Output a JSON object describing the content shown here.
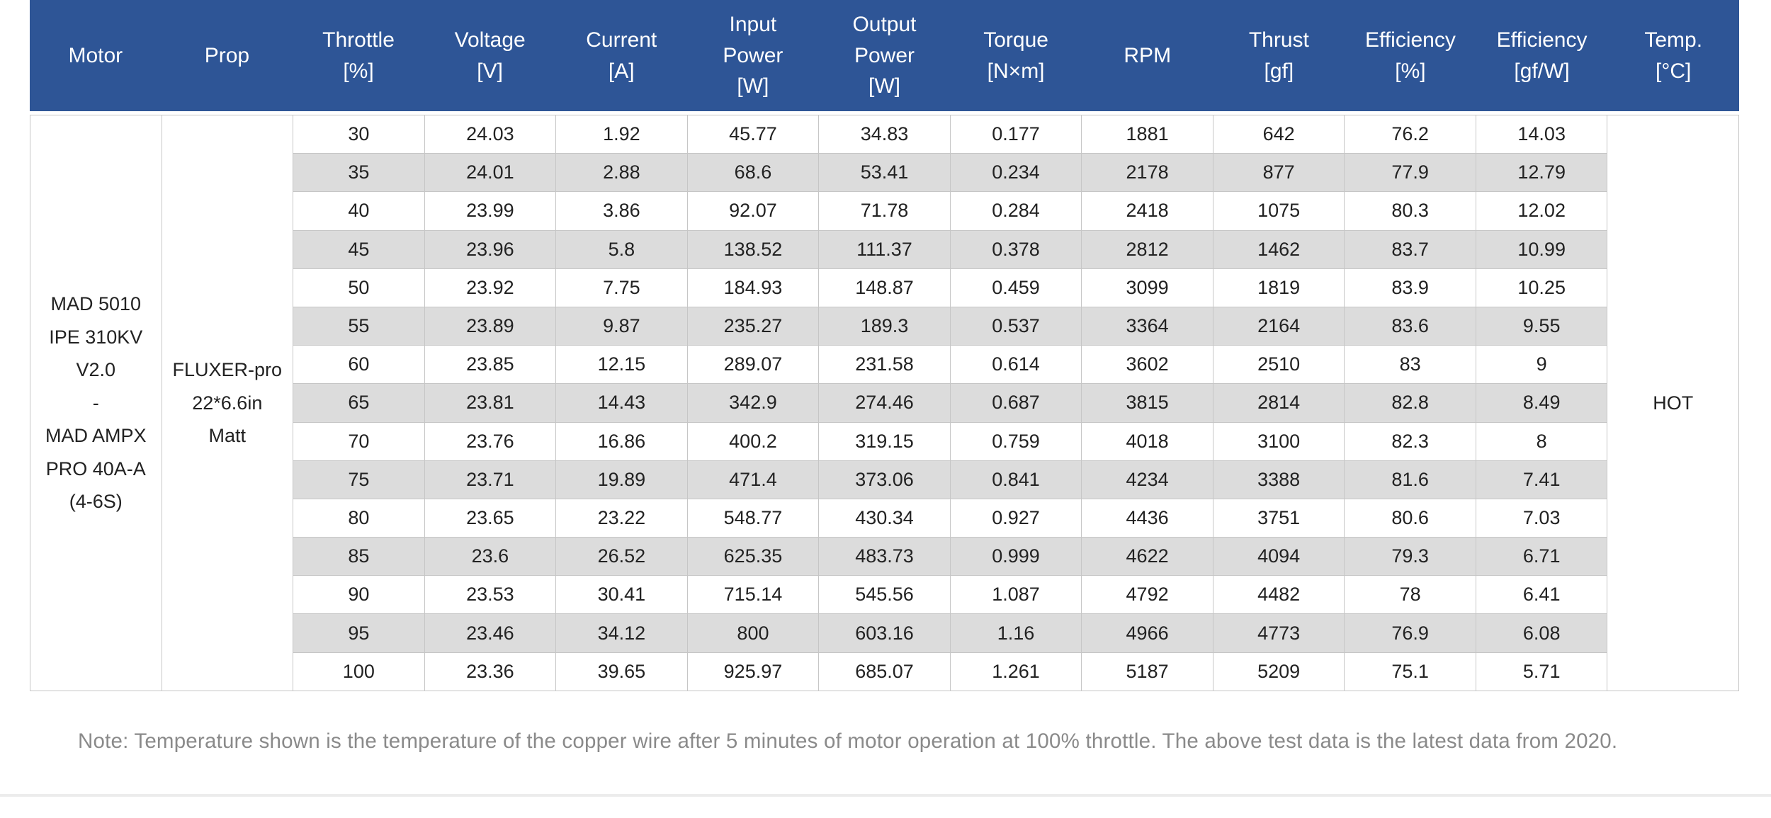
{
  "colors": {
    "header_bg": "#2e5596",
    "header_text": "#ffffff",
    "stripe": "#dcdcdc",
    "border": "#c6c6c6",
    "note_text": "#8a8a8a"
  },
  "table": {
    "columns": [
      {
        "id": "motor",
        "lines": [
          "Motor"
        ]
      },
      {
        "id": "prop",
        "lines": [
          "Prop"
        ]
      },
      {
        "id": "throttle",
        "lines": [
          "Throttle",
          "[%]"
        ]
      },
      {
        "id": "voltage",
        "lines": [
          "Voltage",
          "[V]"
        ]
      },
      {
        "id": "current",
        "lines": [
          "Current",
          "[A]"
        ]
      },
      {
        "id": "input-power",
        "lines": [
          "Input",
          "Power",
          "[W]"
        ]
      },
      {
        "id": "output-power",
        "lines": [
          "Output",
          "Power",
          "[W]"
        ]
      },
      {
        "id": "torque",
        "lines": [
          "Torque",
          "[N×m]"
        ]
      },
      {
        "id": "rpm",
        "lines": [
          "RPM"
        ]
      },
      {
        "id": "thrust",
        "lines": [
          "Thrust",
          "[gf]"
        ]
      },
      {
        "id": "efficiency-pct",
        "lines": [
          "Efficiency",
          "[%]"
        ]
      },
      {
        "id": "efficiency-gfw",
        "lines": [
          "Efficiency",
          "[gf/W]"
        ]
      },
      {
        "id": "temp",
        "lines": [
          "Temp.",
          "[°C]"
        ]
      }
    ],
    "motor_lines": [
      "MAD 5010",
      "IPE 310KV",
      "V2.0",
      "-",
      "MAD AMPX",
      "PRO 40A-A",
      "(4-6S)"
    ],
    "prop_lines": [
      "FLUXER-pro",
      "22*6.6in",
      "Matt"
    ],
    "temp_value": "HOT",
    "rows": [
      [
        "30",
        "24.03",
        "1.92",
        "45.77",
        "34.83",
        "0.177",
        "1881",
        "642",
        "76.2",
        "14.03"
      ],
      [
        "35",
        "24.01",
        "2.88",
        "68.6",
        "53.41",
        "0.234",
        "2178",
        "877",
        "77.9",
        "12.79"
      ],
      [
        "40",
        "23.99",
        "3.86",
        "92.07",
        "71.78",
        "0.284",
        "2418",
        "1075",
        "80.3",
        "12.02"
      ],
      [
        "45",
        "23.96",
        "5.8",
        "138.52",
        "111.37",
        "0.378",
        "2812",
        "1462",
        "83.7",
        "10.99"
      ],
      [
        "50",
        "23.92",
        "7.75",
        "184.93",
        "148.87",
        "0.459",
        "3099",
        "1819",
        "83.9",
        "10.25"
      ],
      [
        "55",
        "23.89",
        "9.87",
        "235.27",
        "189.3",
        "0.537",
        "3364",
        "2164",
        "83.6",
        "9.55"
      ],
      [
        "60",
        "23.85",
        "12.15",
        "289.07",
        "231.58",
        "0.614",
        "3602",
        "2510",
        "83",
        "9"
      ],
      [
        "65",
        "23.81",
        "14.43",
        "342.9",
        "274.46",
        "0.687",
        "3815",
        "2814",
        "82.8",
        "8.49"
      ],
      [
        "70",
        "23.76",
        "16.86",
        "400.2",
        "319.15",
        "0.759",
        "4018",
        "3100",
        "82.3",
        "8"
      ],
      [
        "75",
        "23.71",
        "19.89",
        "471.4",
        "373.06",
        "0.841",
        "4234",
        "3388",
        "81.6",
        "7.41"
      ],
      [
        "80",
        "23.65",
        "23.22",
        "548.77",
        "430.34",
        "0.927",
        "4436",
        "3751",
        "80.6",
        "7.03"
      ],
      [
        "85",
        "23.6",
        "26.52",
        "625.35",
        "483.73",
        "0.999",
        "4622",
        "4094",
        "79.3",
        "6.71"
      ],
      [
        "90",
        "23.53",
        "30.41",
        "715.14",
        "545.56",
        "1.087",
        "4792",
        "4482",
        "78",
        "6.41"
      ],
      [
        "95",
        "23.46",
        "34.12",
        "800",
        "603.16",
        "1.16",
        "4966",
        "4773",
        "76.9",
        "6.08"
      ],
      [
        "100",
        "23.36",
        "39.65",
        "925.97",
        "685.07",
        "1.261",
        "5187",
        "5209",
        "75.1",
        "5.71"
      ]
    ]
  },
  "note": "Note: Temperature shown is the temperature of the copper wire after 5 minutes of motor operation at 100% throttle. The above test data is the latest data from 2020.",
  "chart_data": {
    "type": "table",
    "columns": [
      "Motor",
      "Prop",
      "Throttle [%]",
      "Voltage [V]",
      "Current [A]",
      "Input Power [W]",
      "Output Power [W]",
      "Torque [N×m]",
      "RPM",
      "Thrust [gf]",
      "Efficiency [%]",
      "Efficiency [gf/W]",
      "Temp. [°C]"
    ],
    "merged_cells": {
      "motor": "MAD 5010 IPE 310KV V2.0 - MAD AMPX PRO 40A-A (4-6S)",
      "prop": "FLUXER-pro 22*6.6in Matt",
      "temp": "HOT"
    },
    "rows": [
      [
        30,
        24.03,
        1.92,
        45.77,
        34.83,
        0.177,
        1881,
        642,
        76.2,
        14.03
      ],
      [
        35,
        24.01,
        2.88,
        68.6,
        53.41,
        0.234,
        2178,
        877,
        77.9,
        12.79
      ],
      [
        40,
        23.99,
        3.86,
        92.07,
        71.78,
        0.284,
        2418,
        1075,
        80.3,
        12.02
      ],
      [
        45,
        23.96,
        5.8,
        138.52,
        111.37,
        0.378,
        2812,
        1462,
        83.7,
        10.99
      ],
      [
        50,
        23.92,
        7.75,
        184.93,
        148.87,
        0.459,
        3099,
        1819,
        83.9,
        10.25
      ],
      [
        55,
        23.89,
        9.87,
        235.27,
        189.3,
        0.537,
        3364,
        2164,
        83.6,
        9.55
      ],
      [
        60,
        23.85,
        12.15,
        289.07,
        231.58,
        0.614,
        3602,
        2510,
        83,
        9
      ],
      [
        65,
        23.81,
        14.43,
        342.9,
        274.46,
        0.687,
        3815,
        2814,
        82.8,
        8.49
      ],
      [
        70,
        23.76,
        16.86,
        400.2,
        319.15,
        0.759,
        4018,
        3100,
        82.3,
        8
      ],
      [
        75,
        23.71,
        19.89,
        471.4,
        373.06,
        0.841,
        4234,
        3388,
        81.6,
        7.41
      ],
      [
        80,
        23.65,
        23.22,
        548.77,
        430.34,
        0.927,
        4436,
        3751,
        80.6,
        7.03
      ],
      [
        85,
        23.6,
        26.52,
        625.35,
        483.73,
        0.999,
        4622,
        4094,
        79.3,
        6.71
      ],
      [
        90,
        23.53,
        30.41,
        715.14,
        545.56,
        1.087,
        4792,
        4482,
        78,
        6.41
      ],
      [
        95,
        23.46,
        34.12,
        800,
        603.16,
        1.16,
        4966,
        4773,
        76.9,
        6.08
      ],
      [
        100,
        23.36,
        39.65,
        925.97,
        685.07,
        1.261,
        5187,
        5209,
        75.1,
        5.71
      ]
    ]
  }
}
